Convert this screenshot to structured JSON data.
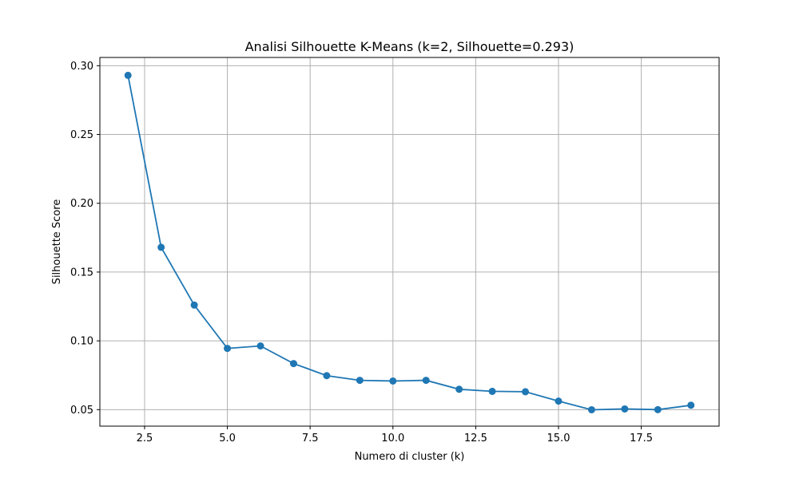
{
  "chart_data": {
    "type": "line",
    "title": "Analisi Silhouette K-Means (k=2, Silhouette=0.293)",
    "xlabel": "Numero di cluster (k)",
    "ylabel": "Silhouette Score",
    "xlim": [
      1.15,
      19.85
    ],
    "ylim": [
      0.038,
      0.306
    ],
    "xticks": [
      2.5,
      5.0,
      7.5,
      10.0,
      12.5,
      15.0,
      17.5
    ],
    "xtick_labels": [
      "2.5",
      "5.0",
      "7.5",
      "10.0",
      "12.5",
      "15.0",
      "17.5"
    ],
    "yticks": [
      0.05,
      0.1,
      0.15,
      0.2,
      0.25,
      0.3
    ],
    "ytick_labels": [
      "0.05",
      "0.10",
      "0.15",
      "0.20",
      "0.25",
      "0.30"
    ],
    "grid": true,
    "series": [
      {
        "x": [
          2,
          3,
          4,
          5,
          6,
          7,
          8,
          9,
          10,
          11,
          12,
          13,
          14,
          15,
          16,
          17,
          18,
          19
        ],
        "values": [
          0.293,
          0.168,
          0.126,
          0.0945,
          0.0963,
          0.0835,
          0.0747,
          0.0713,
          0.0708,
          0.0713,
          0.0648,
          0.0633,
          0.063,
          0.0562,
          0.0499,
          0.0505,
          0.05,
          0.0532
        ],
        "color": "#1f77b4",
        "marker": "circle"
      }
    ]
  }
}
